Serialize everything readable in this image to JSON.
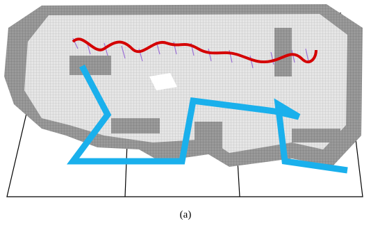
{
  "figure": {
    "caption": "(a)"
  }
}
